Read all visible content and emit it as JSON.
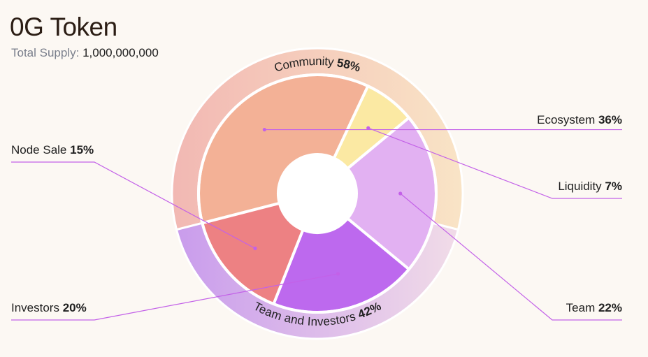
{
  "page": {
    "title": "0G Token",
    "supply_label": "Total Supply:",
    "supply_value": "1,000,000,000"
  },
  "chart_data": {
    "type": "pie",
    "title": "0G Token",
    "outer_ring": [
      {
        "label": "Community",
        "value": 58,
        "display": "58%",
        "colors": [
          "#f2b8b3",
          "#f9e4c6"
        ]
      },
      {
        "label": "Team and Investors",
        "value": 42,
        "display": "42%",
        "colors": [
          "#c99cec",
          "#f1dce8"
        ]
      }
    ],
    "slices": [
      {
        "label": "Ecosystem",
        "value": 36,
        "display": "36%",
        "color": "#f3b196",
        "side": "right"
      },
      {
        "label": "Liquidity",
        "value": 7,
        "display": "7%",
        "color": "#fbe9a3",
        "side": "right"
      },
      {
        "label": "Team",
        "value": 22,
        "display": "22%",
        "color": "#e2b1f2",
        "side": "right"
      },
      {
        "label": "Investors",
        "value": 20,
        "display": "20%",
        "color": "#bd69ee",
        "side": "left"
      },
      {
        "label": "Node Sale",
        "value": 15,
        "display": "15%",
        "color": "#ed8183",
        "side": "left"
      }
    ],
    "leader_line_color": "#c361e8"
  }
}
